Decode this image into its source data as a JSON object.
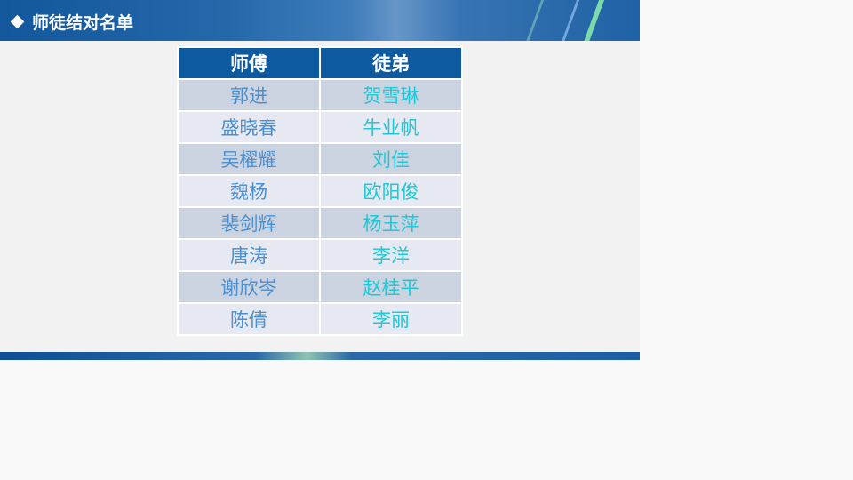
{
  "title": "师徒结对名单",
  "colors": {
    "header_bg": "#0e5aa0",
    "master_text": "#4a8fd0",
    "apprentice_text": "#1ec8d6"
  },
  "table": {
    "headers": [
      "师傅",
      "徒弟"
    ],
    "rows": [
      [
        "郭进",
        "贺雪琳"
      ],
      [
        "盛晓春",
        "牛业帆"
      ],
      [
        "吴櫂耀",
        "刘佳"
      ],
      [
        "魏杨",
        "欧阳俊"
      ],
      [
        "裴剑辉",
        "杨玉萍"
      ],
      [
        "唐涛",
        "李洋"
      ],
      [
        "谢欣岑",
        "赵桂平"
      ],
      [
        "陈倩",
        "李丽"
      ]
    ]
  }
}
